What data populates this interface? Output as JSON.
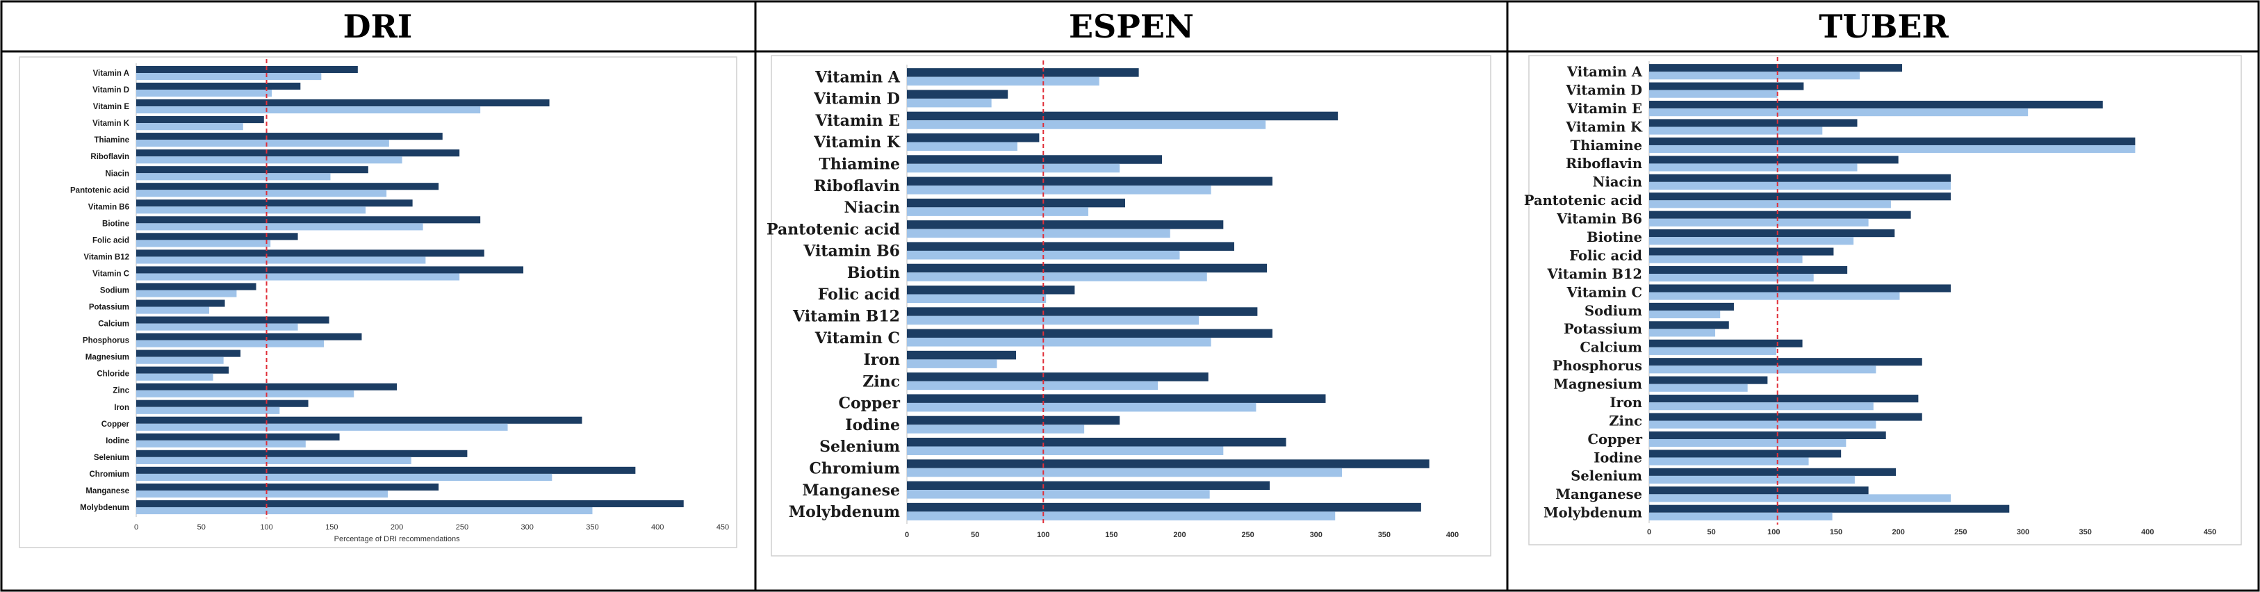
{
  "colors": {
    "dark_bar": "#1c3d63",
    "light_bar": "#9fc3e9",
    "reference_line": "#e0303a",
    "border": "#000000"
  },
  "panels": [
    {
      "title": "DRI"
    },
    {
      "title": "ESPEN"
    },
    {
      "title": "TUBER"
    }
  ],
  "chart_data": [
    {
      "type": "bar",
      "orientation": "horizontal",
      "title": "DRI",
      "xlabel": "Percentage of DRI recommendations",
      "xlim": [
        0,
        450
      ],
      "xticks": [
        0,
        50,
        100,
        150,
        200,
        250,
        300,
        350,
        400,
        450
      ],
      "reference_line": 100,
      "categories": [
        "Vitamin A",
        "Vitamin D",
        "Vitamin E",
        "Vitamin K",
        "Thiamine",
        "Riboflavin",
        "Niacin",
        "Pantotenic acid",
        "Vitamin B6",
        "Biotine",
        "Folic acid",
        "Vitamin B12",
        "Vitamin C",
        "Sodium",
        "Potassium",
        "Calcium",
        "Phosphorus",
        "Magnesium",
        "Chloride",
        "Zinc",
        "Iron",
        "Copper",
        "Iodine",
        "Selenium",
        "Chromium",
        "Manganese",
        "Molybdenum"
      ],
      "series": [
        {
          "values": [
            170,
            126,
            317,
            98,
            235,
            248,
            178,
            232,
            212,
            264,
            124,
            267,
            297,
            92,
            68,
            148,
            173,
            80,
            71,
            200,
            132,
            342,
            156,
            254,
            383,
            232,
            420
          ]
        },
        {
          "values": [
            142,
            104,
            264,
            82,
            194,
            204,
            149,
            192,
            176,
            220,
            103,
            222,
            248,
            77,
            56,
            124,
            144,
            67,
            59,
            167,
            110,
            285,
            130,
            211,
            319,
            193,
            350
          ]
        }
      ]
    },
    {
      "type": "bar",
      "orientation": "horizontal",
      "title": "ESPEN",
      "xlabel": "",
      "xlim": [
        0,
        400
      ],
      "xticks": [
        0,
        50,
        100,
        150,
        200,
        250,
        300,
        350,
        400
      ],
      "reference_line": 100,
      "categories": [
        "Vitamin A",
        "Vitamin D",
        "Vitamin E",
        "Vitamin K",
        "Thiamine",
        "Riboflavin",
        "Niacin",
        "Pantotenic acid",
        "Vitamin B6",
        "Biotin",
        "Folic acid",
        "Vitamin B12",
        "Vitamin C",
        "Iron",
        "Zinc",
        "Copper",
        "Iodine",
        "Selenium",
        "Chromium",
        "Manganese",
        "Molybdenum"
      ],
      "series": [
        {
          "values": [
            170,
            74,
            316,
            97,
            187,
            268,
            160,
            232,
            240,
            264,
            123,
            257,
            268,
            80,
            221,
            307,
            156,
            278,
            383,
            266,
            377
          ]
        },
        {
          "values": [
            141,
            62,
            263,
            81,
            156,
            223,
            133,
            193,
            200,
            220,
            102,
            214,
            223,
            66,
            184,
            256,
            130,
            232,
            319,
            222,
            314
          ]
        }
      ]
    },
    {
      "type": "bar",
      "orientation": "horizontal",
      "title": "TUBER",
      "xlabel": "",
      "xlim": [
        0,
        450
      ],
      "xticks": [
        0,
        50,
        100,
        150,
        200,
        250,
        300,
        350,
        400,
        450
      ],
      "reference_line": 103,
      "categories": [
        "Vitamin A",
        "Vitamin D",
        "Vitamin E",
        "Vitamin K",
        "Thiamine",
        "Riboflavin",
        "Niacin",
        "Pantotenic acid",
        "Vitamin B6",
        "Biotine",
        "Folic acid",
        "Vitamin B12",
        "Vitamin C",
        "Sodium",
        "Potassium",
        "Calcium",
        "Phosphorus",
        "Magnesium",
        "Iron",
        "Zinc",
        "Copper",
        "Iodine",
        "Selenium",
        "Manganese",
        "Molybdenum"
      ],
      "series": [
        {
          "values": [
            203,
            124,
            364,
            167,
            390,
            200,
            242,
            242,
            210,
            197,
            148,
            159,
            242,
            68,
            64,
            123,
            219,
            95,
            216,
            219,
            190,
            154,
            198,
            176,
            289
          ]
        },
        {
          "values": [
            169,
            103,
            304,
            139,
            390,
            167,
            242,
            194,
            176,
            164,
            123,
            132,
            201,
            57,
            53,
            102,
            182,
            79,
            180,
            182,
            158,
            128,
            165,
            242,
            147
          ]
        }
      ]
    }
  ]
}
